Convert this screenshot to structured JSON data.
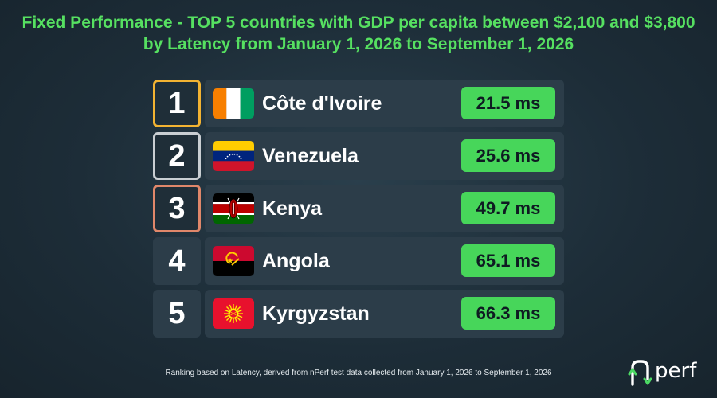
{
  "title": "Fixed Performance - TOP 5 countries with GDP per capita between $2,100 and $3,800 by Latency from January 1, 2026 to September 1, 2026",
  "footnote": "Ranking based on Latency, derived from nPerf test data collected from January 1, 2026 to September 1, 2026",
  "logo": {
    "letter": "n",
    "text": "perf",
    "accent_color": "#4cd964"
  },
  "colors": {
    "title": "#56e061",
    "value_pill": "#47d65a",
    "gold": "#f3b332",
    "silver": "#c9ced2",
    "bronze": "#e0876a"
  },
  "chart_data": {
    "type": "table",
    "unit": "ms",
    "columns": [
      "rank",
      "country",
      "latency"
    ],
    "rows": [
      {
        "rank": "1",
        "country": "Côte d'Ivoire",
        "flag": "cote-divoire-flag-icon",
        "value": 21.5,
        "value_label": "21.5 ms",
        "medal": "gold"
      },
      {
        "rank": "2",
        "country": "Venezuela",
        "flag": "venezuela-flag-icon",
        "value": 25.6,
        "value_label": "25.6 ms",
        "medal": "silver"
      },
      {
        "rank": "3",
        "country": "Kenya",
        "flag": "kenya-flag-icon",
        "value": 49.7,
        "value_label": "49.7 ms",
        "medal": "bronze"
      },
      {
        "rank": "4",
        "country": "Angola",
        "flag": "angola-flag-icon",
        "value": 65.1,
        "value_label": "65.1 ms",
        "medal": "none"
      },
      {
        "rank": "5",
        "country": "Kyrgyzstan",
        "flag": "kyrgyzstan-flag-icon",
        "value": 66.3,
        "value_label": "66.3 ms",
        "medal": "none"
      }
    ]
  }
}
